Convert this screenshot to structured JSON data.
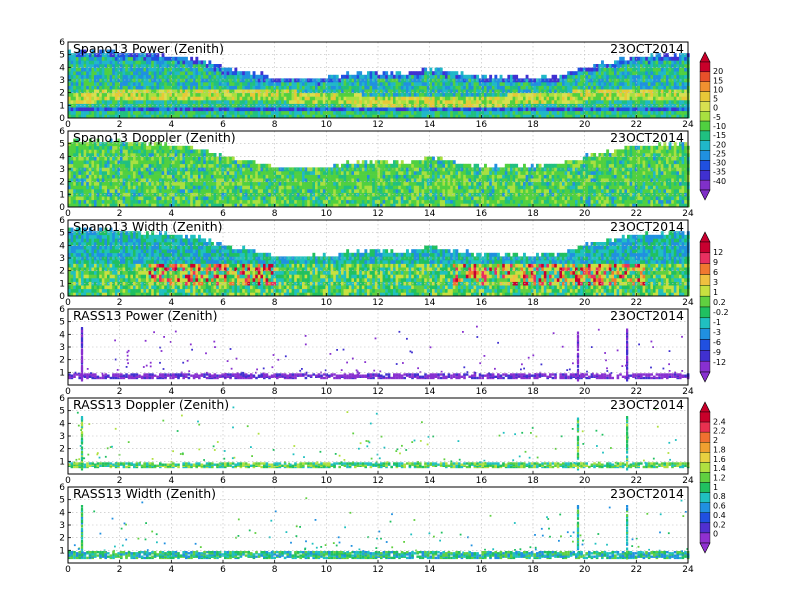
{
  "figure": {
    "date_label": "23OCT2014"
  },
  "chart_data": [
    {
      "type": "heatmap",
      "title": "Spano13 Power (Zenith)",
      "date": "23OCT2014",
      "x_ticks": [
        0,
        2,
        4,
        6,
        8,
        10,
        12,
        14,
        16,
        18,
        20,
        22,
        24
      ],
      "y_ticks": [
        0,
        1,
        2,
        3,
        4,
        5,
        6
      ],
      "xlim": [
        0,
        24
      ],
      "ylim": [
        0,
        6
      ],
      "grid": true,
      "colorbar": "power",
      "top_km_by_hour": [
        5.4,
        5.4,
        5.3,
        5.2,
        5.0,
        4.8,
        4.1,
        3.8,
        3.3,
        3.3,
        3.3,
        3.7,
        3.7,
        3.6,
        4.1,
        3.7,
        3.4,
        3.4,
        3.4,
        3.5,
        4.2,
        4.6,
        5.0,
        5.1,
        5.2
      ],
      "pattern": "low-altitude bright layer 1.5-2.5 km (5 to 15 dB), weaker return above (-15 to -35 dB)"
    },
    {
      "type": "heatmap",
      "title": "Spano13 Doppler (Zenith)",
      "date": "23OCT2014",
      "x_ticks": [
        0,
        2,
        4,
        6,
        8,
        10,
        12,
        14,
        16,
        18,
        20,
        22,
        24
      ],
      "y_ticks": [
        0,
        1,
        2,
        3,
        4,
        5,
        6
      ],
      "xlim": [
        0,
        24
      ],
      "ylim": [
        0,
        6
      ],
      "grid": true,
      "colorbar": "power",
      "top_km_by_hour": [
        5.4,
        5.4,
        5.3,
        5.2,
        5.0,
        4.8,
        4.1,
        3.8,
        3.3,
        3.3,
        3.3,
        3.7,
        3.7,
        3.6,
        4.1,
        3.7,
        3.4,
        3.4,
        3.4,
        3.5,
        4.2,
        4.6,
        5.0,
        5.1,
        5.2
      ],
      "pattern": "mostly near-zero velocity (green), scattered cyan"
    },
    {
      "type": "heatmap",
      "title": "Spano13 Width (Zenith)",
      "date": "23OCT2014",
      "x_ticks": [
        0,
        2,
        4,
        6,
        8,
        10,
        12,
        14,
        16,
        18,
        20,
        22,
        24
      ],
      "y_ticks": [
        0,
        1,
        2,
        3,
        4,
        5,
        6
      ],
      "xlim": [
        0,
        24
      ],
      "ylim": [
        0,
        6
      ],
      "grid": true,
      "colorbar": "width",
      "top_km_by_hour": [
        5.4,
        5.4,
        5.3,
        5.2,
        5.0,
        4.8,
        4.1,
        3.8,
        3.3,
        3.3,
        3.3,
        3.7,
        3.7,
        3.6,
        4.1,
        3.7,
        3.4,
        3.4,
        3.4,
        3.5,
        4.2,
        4.6,
        5.0,
        5.1,
        5.2
      ],
      "pattern": "high width (red/magenta) 1-3 km between 3-8 h and 15-22 h"
    },
    {
      "type": "heatmap",
      "title": "RASS13 Power (Zenith)",
      "date": "23OCT2014",
      "x_ticks": [
        0,
        2,
        4,
        6,
        8,
        10,
        12,
        14,
        16,
        18,
        20,
        22,
        24
      ],
      "y_ticks": [
        1,
        2,
        3,
        4,
        5,
        6
      ],
      "xlim": [
        0,
        24
      ],
      "ylim": [
        0,
        6
      ],
      "grid": true,
      "colorbar": "width",
      "pattern": "thin violet band 0.7-1.0 km, vertical streaks near 0.5 h, 19.7 h, 21.6 h"
    },
    {
      "type": "heatmap",
      "title": "RASS13 Doppler (Zenith)",
      "date": "23OCT2014",
      "x_ticks": [
        0,
        2,
        4,
        6,
        8,
        10,
        12,
        14,
        16,
        18,
        20,
        22,
        24
      ],
      "y_ticks": [
        1,
        2,
        3,
        4,
        5,
        6
      ],
      "xlim": [
        0,
        24
      ],
      "ylim": [
        0,
        6
      ],
      "grid": true,
      "colorbar": "rass",
      "pattern": "green band 0.6-0.9 km, vertical streaks near 0.5 h, 19.7 h, 21.6 h"
    },
    {
      "type": "heatmap",
      "title": "RASS13 Width (Zenith)",
      "date": "23OCT2014",
      "x_ticks": [
        0,
        2,
        4,
        6,
        8,
        10,
        12,
        14,
        16,
        18,
        20,
        22,
        24
      ],
      "y_ticks": [
        1,
        2,
        3,
        4,
        5,
        6
      ],
      "xlim": [
        0,
        24
      ],
      "ylim": [
        0,
        6
      ],
      "grid": true,
      "colorbar": "rass",
      "pattern": "green/cyan band 0.5-0.9 km, vertical streaks near 0.5 h, 19.7 h, 21.6 h"
    }
  ],
  "colorbars": {
    "power": {
      "labels": [
        "20",
        "15",
        "10",
        "5",
        "0",
        "-5",
        "-10",
        "-15",
        "-20",
        "-25",
        "-30",
        "-35",
        "-40"
      ],
      "colors": [
        "#c8002a",
        "#e8502a",
        "#f09030",
        "#e8c838",
        "#d8e050",
        "#a8e040",
        "#50d040",
        "#20c080",
        "#20b8c8",
        "#2090e0",
        "#2050e0",
        "#4030d0",
        "#8030c8"
      ]
    },
    "width": {
      "labels": [
        "12",
        "9",
        "6",
        "3",
        "1",
        "0.2",
        "-0.2",
        "-1",
        "-3",
        "-6",
        "-9",
        "-12"
      ],
      "colors": [
        "#c80030",
        "#e83060",
        "#f07830",
        "#f0c040",
        "#c8e040",
        "#60d040",
        "#20c060",
        "#20c0c0",
        "#2090e0",
        "#2050e0",
        "#4030d0",
        "#8830d0"
      ]
    },
    "rass": {
      "labels": [
        "2.4",
        "2.2",
        "2",
        "1.8",
        "1.6",
        "1.4",
        "1.2",
        "1",
        "0.8",
        "0.6",
        "0.4",
        "0.2",
        "0"
      ],
      "colors": [
        "#c8002a",
        "#e83050",
        "#f07030",
        "#f0a030",
        "#e8d040",
        "#b0e040",
        "#60d040",
        "#20c060",
        "#20c0c0",
        "#2090e0",
        "#2050e0",
        "#5030d0",
        "#9030d0"
      ]
    }
  }
}
